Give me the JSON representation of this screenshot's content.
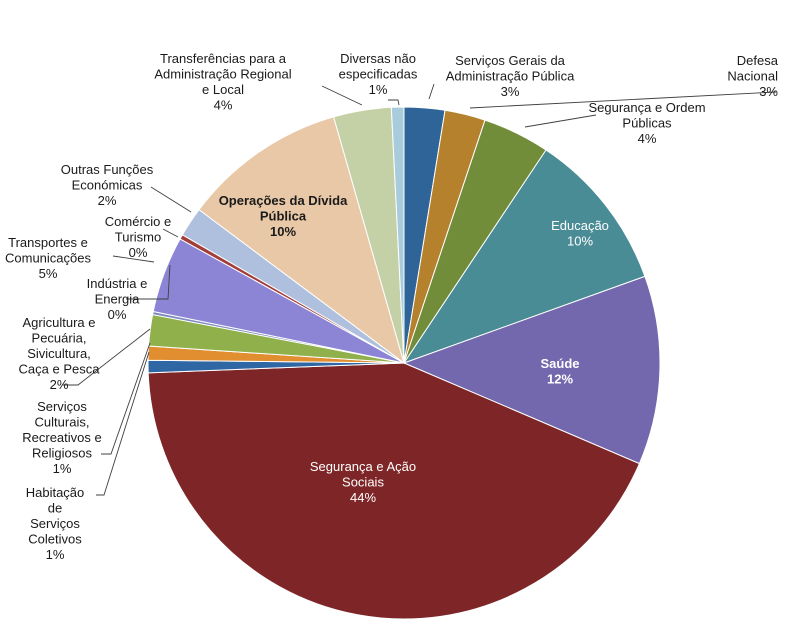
{
  "chart_data": {
    "type": "pie",
    "title": "",
    "start_angle_deg": 0,
    "direction": "clockwise",
    "slices": [
      {
        "name": "Serviços Gerais da Administração Pública",
        "label": [
          "Serviços Gerais da",
          "Administração Pública"
        ],
        "pct": "3%",
        "value": 2.6,
        "color": "#2E6497"
      },
      {
        "name": "Defesa Nacional",
        "label": [
          "Defesa",
          "Nacional"
        ],
        "pct": "3%",
        "value": 2.6,
        "color": "#B6812D"
      },
      {
        "name": "Segurança e Ordem Públicas",
        "label": [
          "Segurança e Ordem",
          "Públicas"
        ],
        "pct": "4%",
        "value": 4.3,
        "color": "#728D3A"
      },
      {
        "name": "Educação",
        "label": [
          "Educação"
        ],
        "pct": "10%",
        "value": 10.3,
        "color": "#4A8C95",
        "inside": true,
        "text_color": "#ffffff"
      },
      {
        "name": "Saúde",
        "label": [
          "Saúde"
        ],
        "pct": "12%",
        "value": 12.1,
        "color": "#7367AD",
        "inside": true,
        "bold": true,
        "text_color": "#ffffff"
      },
      {
        "name": "Segurança e Ação Sociais",
        "label": [
          "Segurança e Ação",
          "Sociais"
        ],
        "pct": "44%",
        "value": 43.6,
        "color": "#7E2627",
        "inside": true,
        "text_color": "#ffffff"
      },
      {
        "name": "Habitação de Serviços Coletivos",
        "label": [
          "Habitação",
          "de",
          "Serviços",
          "Coletivos"
        ],
        "pct": "1%",
        "value": 0.8,
        "color": "#2F66A4"
      },
      {
        "name": "Serviços Culturais, Recreativos e Religiosos",
        "label": [
          "Serviços",
          "Culturais,",
          "Recreativos e",
          "Religiosos"
        ],
        "pct": "1%",
        "value": 0.9,
        "color": "#E08E2F"
      },
      {
        "name": "Agricultura e Pecuária, Sivicultura, Caça e Pesca",
        "label": [
          "Agricultura e",
          "Pecuária,",
          "Sivicultura,",
          "Caça e Pesca"
        ],
        "pct": "2%",
        "value": 2.0,
        "color": "#8FB04A"
      },
      {
        "name": "Indústria e Energia",
        "label": [
          "Indústria e",
          "Energia"
        ],
        "pct": "0%",
        "value": 0.2,
        "color": "#7E8CC2"
      },
      {
        "name": "Transportes e Comunicações",
        "label": [
          "Transportes e",
          "Comunicações"
        ],
        "pct": "5%",
        "value": 4.9,
        "color": "#8C85D6"
      },
      {
        "name": "Comércio e Turismo",
        "label": [
          "Comércio e",
          "Turismo"
        ],
        "pct": "0%",
        "value": 0.3,
        "color": "#A23E3A"
      },
      {
        "name": "Outras Funções Económicas",
        "label": [
          "Outras Funções",
          "Económicas"
        ],
        "pct": "2%",
        "value": 1.9,
        "color": "#AFC0DE"
      },
      {
        "name": "Operações da Dívida Pública",
        "label": [
          "Operações da Dívida",
          "Pública"
        ],
        "pct": "10%",
        "value": 10.5,
        "color": "#E8C8A6",
        "inside": true,
        "bold": true,
        "text_color": "#1a1a1a"
      },
      {
        "name": "Transferências para a Administração Regional e Local",
        "label": [
          "Transferências para a",
          "Administração Regional",
          "e Local"
        ],
        "pct": "4%",
        "value": 3.7,
        "color": "#C4D1A6"
      },
      {
        "name": "Diversas não especificadas",
        "label": [
          "Diversas não",
          "especificadas"
        ],
        "pct": "1%",
        "value": 0.8,
        "color": "#A9CCDC"
      }
    ]
  }
}
